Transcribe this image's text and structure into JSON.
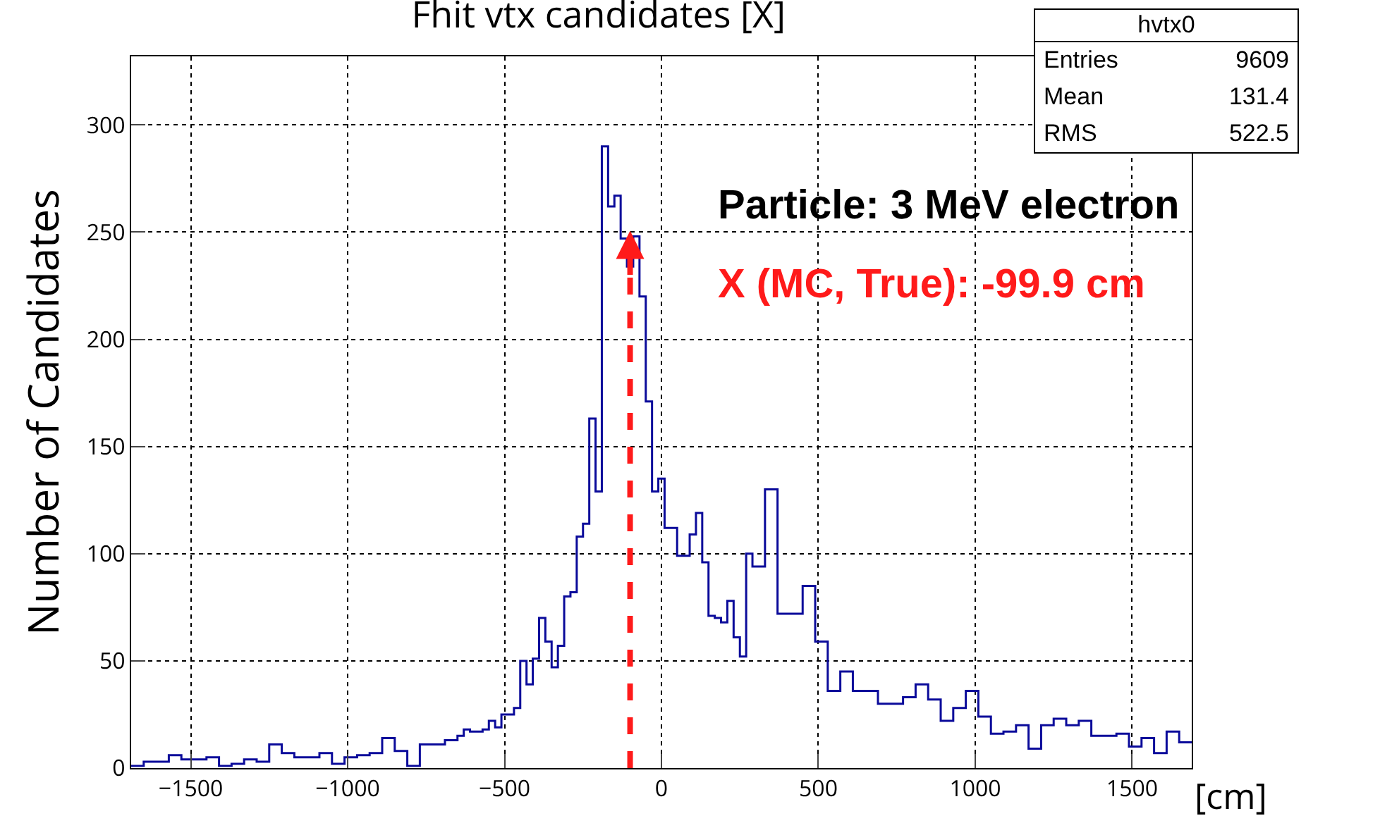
{
  "chart_data": {
    "type": "histogram",
    "title": "Fhit vtx candidates [X]",
    "xlabel": "[cm]",
    "ylabel": "Number of Candidates",
    "bins": [
      -1690,
      -1650,
      -1610,
      -1570,
      -1530,
      -1490,
      -1450,
      -1410,
      -1370,
      -1330,
      -1290,
      -1250,
      -1210,
      -1170,
      -1130,
      -1090,
      -1050,
      -1010,
      -970,
      -930,
      -890,
      -850,
      -810,
      -770,
      -730,
      -690,
      -650,
      -630,
      -610,
      -590,
      -570,
      -550,
      -530,
      -510,
      -490,
      -470,
      -450,
      -430,
      -410,
      -390,
      -370,
      -350,
      -330,
      -310,
      -290,
      -270,
      -250,
      -230,
      -210,
      -190,
      -170,
      -150,
      -130,
      -110,
      -90,
      -70,
      -50,
      -30,
      -10,
      10,
      30,
      50,
      70,
      90,
      110,
      130,
      150,
      170,
      190,
      210,
      230,
      250,
      270,
      290,
      330,
      370,
      410,
      450,
      490,
      530,
      570,
      610,
      650,
      690,
      730,
      770,
      810,
      850,
      890,
      930,
      970,
      1010,
      1050,
      1090,
      1130,
      1170,
      1210,
      1250,
      1290,
      1330,
      1370,
      1410,
      1450,
      1490,
      1530,
      1570,
      1610,
      1650,
      1690
    ],
    "values": [
      1,
      3,
      3,
      6,
      4,
      4,
      5,
      1,
      2,
      4,
      3,
      11,
      7,
      5,
      5,
      7,
      2,
      5,
      6,
      7,
      14,
      8,
      1,
      11,
      11,
      13,
      15,
      18,
      17,
      17,
      18,
      22,
      19,
      25,
      25,
      28,
      50,
      39,
      51,
      70,
      59,
      47,
      57,
      80,
      82,
      108,
      114,
      163,
      129,
      290,
      262,
      267,
      247,
      234,
      248,
      220,
      171,
      129,
      135,
      112,
      112,
      99,
      99,
      109,
      119,
      96,
      71,
      70,
      68,
      78,
      61,
      52,
      100,
      94,
      130,
      72,
      72,
      85,
      59,
      36,
      45,
      36,
      36,
      30,
      30,
      33,
      39,
      32,
      22,
      28,
      36,
      24,
      16,
      17,
      20,
      9,
      20,
      23,
      20,
      22,
      15,
      15,
      16,
      10,
      14,
      7,
      17,
      12
    ],
    "color": "#0a0a9a",
    "xlim": [
      -1690,
      1690
    ],
    "ylim": [
      0,
      332
    ],
    "xticks": [
      {
        "value": -1500,
        "label": "−1500"
      },
      {
        "value": -1000,
        "label": "−1000"
      },
      {
        "value": -500,
        "label": "−500"
      },
      0,
      500,
      1000,
      1500
    ],
    "yticks": [
      0,
      50,
      100,
      150,
      200,
      250,
      300
    ],
    "grid": true,
    "ref_lines": [
      {
        "axis": "x",
        "value": -99.9,
        "color": "#ff1a1a",
        "line_style": "dashed"
      }
    ],
    "annotations": [
      "hvtx0",
      "Entries 9609",
      "Mean 131.4",
      "RMS 522.5",
      "Particle: 3 MeV electron",
      "X (MC, True): -99.9 cm"
    ]
  }
}
